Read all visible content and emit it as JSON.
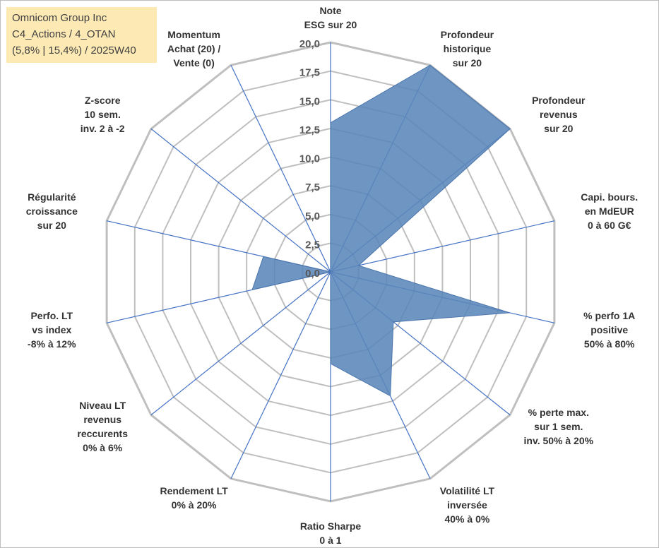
{
  "title_box": {
    "line1": "Omnicom Group Inc",
    "line2": "C4_Actions / 4_OTAN",
    "line3": "(5,8% | 15,4%) / 2025W40"
  },
  "chart_data": {
    "type": "radar",
    "rmin": 0,
    "rmax": 20,
    "ticks": [
      "0,0",
      "2,5",
      "5,0",
      "7,5",
      "10,0",
      "12,5",
      "15,0",
      "17,5",
      "20,0"
    ],
    "tick_values": [
      0,
      2.5,
      5,
      7.5,
      10,
      12.5,
      15,
      17.5,
      20
    ],
    "grid": true,
    "colors": {
      "fill": "#5b86ba",
      "stroke": "#4a76ad",
      "spoke": "#4472c4",
      "ring": "#bfbfbf"
    },
    "axes": [
      {
        "lines": [
          "Note",
          "ESG sur 20"
        ]
      },
      {
        "lines": [
          "Profondeur",
          "historique",
          "sur 20"
        ]
      },
      {
        "lines": [
          "Profondeur",
          "revenus",
          "sur 20"
        ]
      },
      {
        "lines": [
          "Capi. bours.",
          "en MdEUR",
          "0 à 60 G€"
        ]
      },
      {
        "lines": [
          "% perfo 1A",
          "positive",
          "50% à 80%"
        ]
      },
      {
        "lines": [
          "% perte max.",
          "sur 1 sem.",
          "inv. 50% à 20%"
        ]
      },
      {
        "lines": [
          "Volatilité LT",
          "inversée",
          "40% à 0%"
        ]
      },
      {
        "lines": [
          "Ratio Sharpe",
          "0 à 1"
        ]
      },
      {
        "lines": [
          "Rendement LT",
          "0% à 20%"
        ]
      },
      {
        "lines": [
          "Niveau LT",
          "revenus",
          "reccurents",
          "0% à 6%"
        ]
      },
      {
        "lines": [
          "Perfo. LT",
          "vs index",
          "-8% à 12%"
        ]
      },
      {
        "lines": [
          "Régularité",
          "croissance",
          "sur 20"
        ]
      },
      {
        "lines": [
          "Z-score",
          "10 sem.",
          "inv. 2 à -2"
        ]
      },
      {
        "lines": [
          "Momentum",
          "Achat (20) /",
          "Vente (0)"
        ]
      }
    ],
    "values": [
      13,
      20,
      20,
      2.5,
      16,
      7,
      12,
      8,
      0,
      0,
      7,
      6,
      0,
      0
    ]
  }
}
